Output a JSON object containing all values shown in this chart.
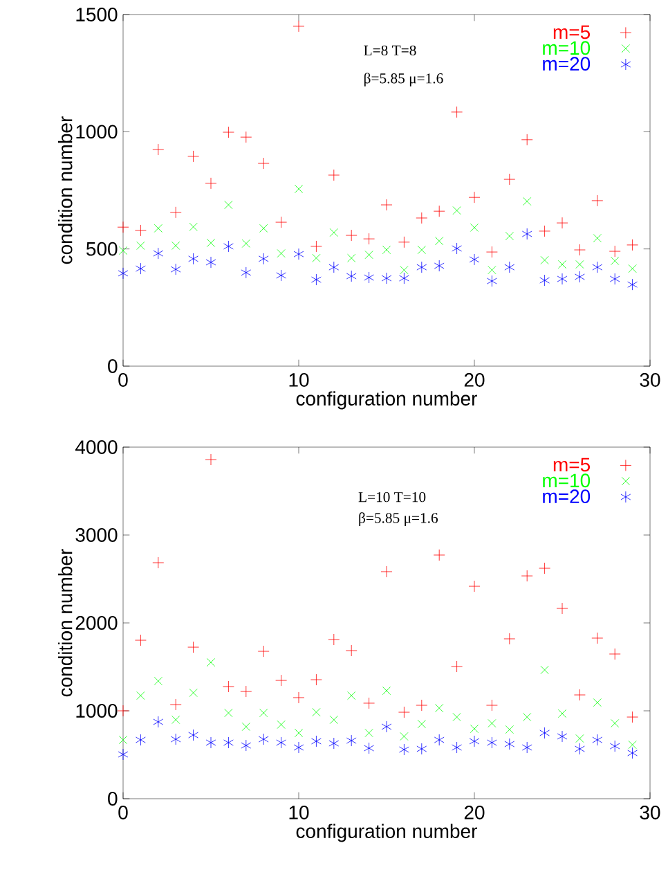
{
  "chart_data": [
    {
      "type": "scatter",
      "xlabel": "configuration number",
      "ylabel": "condition number",
      "annotations": [
        "L=8 T=8",
        "β=5.85 μ=1.6"
      ],
      "x": [
        0,
        1,
        2,
        3,
        4,
        5,
        6,
        7,
        8,
        9,
        10,
        11,
        12,
        13,
        14,
        15,
        16,
        17,
        18,
        19,
        20,
        21,
        22,
        23,
        24,
        25,
        26,
        27,
        28,
        29
      ],
      "xlim": [
        0,
        30
      ],
      "xticks": [
        0,
        10,
        20,
        30
      ],
      "ylim": [
        0,
        1500
      ],
      "yticks": [
        0,
        500,
        1000,
        1500
      ],
      "legend": "top right",
      "series": [
        {
          "name": "m=5",
          "color": "#ff0000",
          "marker": "plus",
          "values": [
            593,
            579,
            924,
            656,
            895,
            780,
            998,
            977,
            865,
            614,
            1450,
            511,
            815,
            558,
            543,
            688,
            529,
            632,
            661,
            1084,
            720,
            487,
            797,
            966,
            576,
            611,
            496,
            706,
            490,
            517
          ]
        },
        {
          "name": "m=10",
          "color": "#00ff00",
          "marker": "cross",
          "values": [
            493,
            514,
            588,
            514,
            594,
            526,
            688,
            523,
            588,
            481,
            756,
            461,
            570,
            461,
            475,
            496,
            410,
            496,
            534,
            664,
            591,
            410,
            555,
            703,
            452,
            434,
            434,
            546,
            449,
            416
          ]
        },
        {
          "name": "m=20",
          "color": "#0000ff",
          "values": [
            396,
            416,
            481,
            413,
            458,
            443,
            511,
            399,
            458,
            387,
            478,
            369,
            422,
            384,
            378,
            375,
            375,
            422,
            428,
            502,
            455,
            363,
            422,
            564,
            366,
            372,
            381,
            422,
            372,
            348
          ]
        }
      ]
    },
    {
      "type": "scatter",
      "xlabel": "configuration number",
      "ylabel": "condition number",
      "annotations": [
        "L=10 T=10",
        "β=5.85 μ=1.6"
      ],
      "x": [
        0,
        1,
        2,
        3,
        4,
        5,
        6,
        7,
        8,
        9,
        10,
        11,
        12,
        13,
        14,
        15,
        16,
        17,
        18,
        19,
        20,
        21,
        22,
        23,
        24,
        25,
        26,
        27,
        28,
        29
      ],
      "xlim": [
        0,
        30
      ],
      "xticks": [
        0,
        10,
        20,
        30
      ],
      "ylim": [
        0,
        4000
      ],
      "yticks": [
        0,
        1000,
        2000,
        3000,
        4000
      ],
      "legend": "top right",
      "series": [
        {
          "name": "m=5",
          "color": "#ff0000",
          "marker": "plus",
          "values": [
            1000,
            1803,
            2685,
            1071,
            1724,
            3858,
            1276,
            1220,
            1677,
            1346,
            1150,
            1354,
            1811,
            1685,
            1087,
            2583,
            984,
            1063,
            2772,
            1504,
            2417,
            1063,
            1819,
            2535,
            2622,
            2165,
            1181,
            1827,
            1646,
            929
          ]
        },
        {
          "name": "m=10",
          "color": "#00ff00",
          "marker": "cross",
          "values": [
            669,
            1173,
            1339,
            898,
            1205,
            1551,
            976,
            819,
            976,
            843,
            748,
            984,
            898,
            1173,
            748,
            1228,
            709,
            850,
            1031,
            929,
            795,
            858,
            787,
            929,
            1465,
            969,
            685,
            1094,
            858,
            614
          ]
        },
        {
          "name": "m=20",
          "color": "#0000ff",
          "values": [
            504,
            669,
            874,
            677,
            724,
            638,
            638,
            606,
            677,
            638,
            583,
            654,
            630,
            661,
            575,
            819,
            559,
            567,
            669,
            583,
            654,
            638,
            622,
            583,
            748,
            709,
            567,
            669,
            598,
            520
          ]
        }
      ]
    }
  ]
}
